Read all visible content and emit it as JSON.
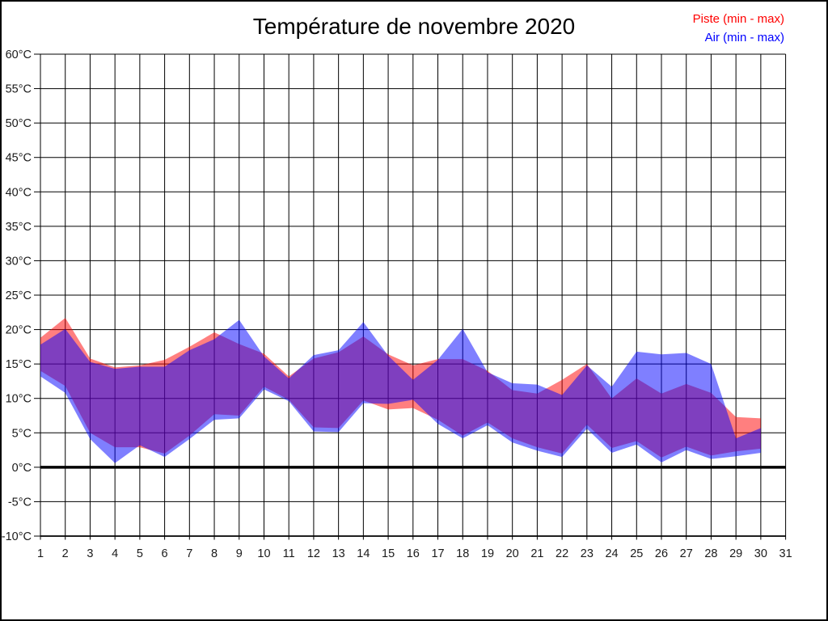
{
  "page": {
    "background": "#ffffff",
    "border_color": "#000000"
  },
  "chart_data": {
    "type": "area",
    "title": "Température de novembre 2020",
    "title_color": "#000000",
    "xlim": [
      1,
      31
    ],
    "ylim": [
      -10,
      60
    ],
    "y_tick_step": 5,
    "grid": true,
    "grid_color": "#000000",
    "zero_line_width": 3.5,
    "legend_position": "top-right",
    "x_tick_labels": [
      "1",
      "2",
      "3",
      "4",
      "5",
      "6",
      "7",
      "8",
      "9",
      "10",
      "11",
      "12",
      "13",
      "14",
      "15",
      "16",
      "17",
      "18",
      "19",
      "20",
      "21",
      "22",
      "23",
      "24",
      "25",
      "26",
      "27",
      "28",
      "29",
      "30",
      "31"
    ],
    "y_tick_labels": [
      "60°C",
      "55°C",
      "50°C",
      "45°C",
      "40°C",
      "35°C",
      "30°C",
      "25°C",
      "20°C",
      "15°C",
      "10°C",
      "5°C",
      "0°C",
      "-5°C",
      "-10°C"
    ],
    "x": [
      1,
      2,
      3,
      4,
      5,
      6,
      7,
      8,
      9,
      10,
      11,
      12,
      13,
      14,
      15,
      16,
      17,
      18,
      19,
      20,
      21,
      22,
      23,
      24,
      25,
      26,
      27,
      28,
      29,
      30
    ],
    "series": [
      {
        "name": "Piste (min - max)",
        "color": "#ff0000",
        "fill_opacity": 0.5,
        "min": [
          14.0,
          11.8,
          5.0,
          2.9,
          2.9,
          2.0,
          4.6,
          7.7,
          7.5,
          11.7,
          9.8,
          5.8,
          5.7,
          9.7,
          8.4,
          8.6,
          6.9,
          4.6,
          6.5,
          4.2,
          2.9,
          2.0,
          6.2,
          2.8,
          3.8,
          1.4,
          3.0,
          1.7,
          2.3,
          2.7
        ],
        "max": [
          18.8,
          21.7,
          15.8,
          14.5,
          14.8,
          15.6,
          17.5,
          19.6,
          17.9,
          16.5,
          13.2,
          15.8,
          16.7,
          19.0,
          16.4,
          14.8,
          15.7,
          15.7,
          14.0,
          11.2,
          10.7,
          12.7,
          15.0,
          10.0,
          12.9,
          10.7,
          12.1,
          10.8,
          7.3,
          7.1
        ]
      },
      {
        "name": "Air (min - max)",
        "color": "#0000ff",
        "fill_opacity": 0.5,
        "min": [
          13.2,
          10.8,
          4.1,
          0.6,
          3.2,
          1.5,
          4.1,
          6.9,
          7.1,
          11.3,
          9.6,
          5.2,
          5.1,
          9.3,
          9.2,
          9.8,
          6.3,
          4.2,
          6.1,
          3.6,
          2.4,
          1.5,
          5.6,
          2.1,
          3.3,
          0.7,
          2.5,
          1.2,
          1.6,
          2.1
        ],
        "max": [
          17.8,
          20.1,
          15.3,
          14.3,
          14.6,
          14.6,
          17.0,
          18.6,
          21.4,
          16.1,
          12.9,
          16.3,
          17.0,
          21.1,
          16.2,
          12.7,
          15.6,
          20.1,
          13.8,
          12.2,
          12.0,
          10.5,
          14.8,
          11.7,
          16.8,
          16.4,
          16.6,
          15.0,
          4.2,
          5.7
        ]
      }
    ]
  }
}
